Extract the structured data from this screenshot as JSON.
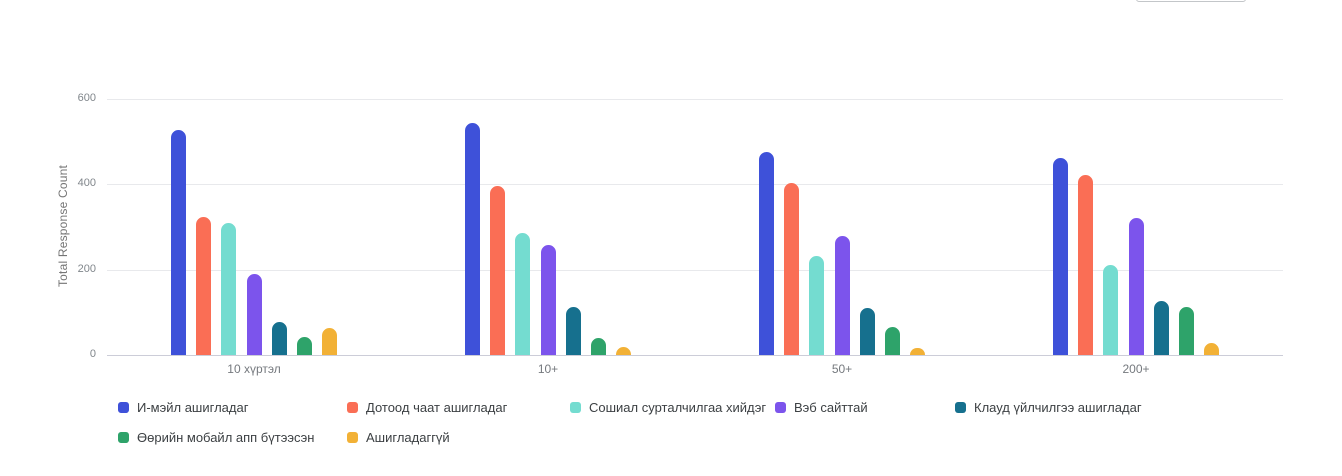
{
  "chart_data": {
    "type": "bar",
    "title": "",
    "xlabel": "",
    "ylabel": "Total Response Count",
    "ylim": [
      0,
      600
    ],
    "yticks": [
      0,
      200,
      400,
      600
    ],
    "grid": true,
    "legend_position": "bottom",
    "categories": [
      "10 хүртэл",
      "10+",
      "50+",
      "200+"
    ],
    "series": [
      {
        "name": "И-мэйл ашигладаг",
        "color": "#3E51D9",
        "values": [
          527,
          543,
          476,
          462
        ]
      },
      {
        "name": "Дотоод чаат ашигладаг",
        "color": "#FA6E55",
        "values": [
          323,
          395,
          403,
          423
        ]
      },
      {
        "name": "Сошиал сурталчилгаа хийдэг",
        "color": "#74DCD0",
        "values": [
          310,
          287,
          232,
          212
        ]
      },
      {
        "name": "Вэб сайттай",
        "color": "#7C54EC",
        "values": [
          190,
          258,
          279,
          322
        ]
      },
      {
        "name": "Клауд үйлчилгээ ашигладаг",
        "color": "#16708E",
        "values": [
          78,
          112,
          111,
          127
        ]
      },
      {
        "name": "Өөрийн мобайл апп бүтээсэн",
        "color": "#2EA36A",
        "values": [
          43,
          41,
          66,
          113
        ]
      },
      {
        "name": "Ашигладаггүй",
        "color": "#F2B136",
        "values": [
          63,
          19,
          16,
          27
        ]
      }
    ]
  }
}
